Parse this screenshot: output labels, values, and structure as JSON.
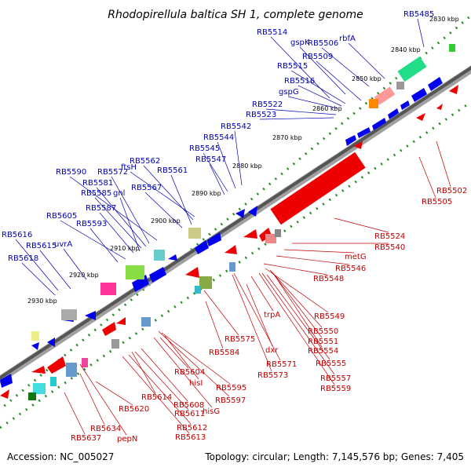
{
  "title": "Rhodopirellula baltica SH 1, complete genome",
  "footer": {
    "accession": "Accession: NC_005027",
    "summary": "Topology: circular; Length: 7,145,576 bp; Genes: 7,405"
  },
  "ticks": [
    "2830 kbp",
    "2840 kbp",
    "2850 kbp",
    "2860 kbp",
    "2870 kbp",
    "2880 kbp",
    "2890 kbp",
    "2900 kbp",
    "2910 kbp",
    "2920 kbp",
    "2930 kbp"
  ],
  "colors": {
    "forward_gene": "#0000ee",
    "reverse_gene": "#ee0000",
    "backbone": "#555555",
    "tick_dot": "#228b22",
    "label_blue": "#0000b0",
    "label_red": "#c00000"
  },
  "labels_blue": [
    "RB5485",
    "RB5514",
    "gspK",
    "RB5506",
    "rbfA",
    "RB5509",
    "RB5515",
    "RB5516",
    "gspG",
    "RB5522",
    "RB5523",
    "RB5542",
    "RB5544",
    "RB5545",
    "RB5547",
    "ftsH",
    "RB5562",
    "RB5561",
    "RB5590",
    "RB5572",
    "RB5581",
    "RB5567",
    "RB5585",
    "gnl",
    "RB5587",
    "RB5605",
    "RB5593",
    "RB5616",
    "uvrA",
    "RB5615",
    "RB5618"
  ],
  "labels_red": [
    "RB5502",
    "RB5505",
    "RB5524",
    "RB5540",
    "metG",
    "RB5546",
    "RB5548",
    "trpA",
    "RB5549",
    "RB5550",
    "RB5551",
    "RB5554",
    "RB5575",
    "dxr",
    "RB5555",
    "RB5584",
    "RB5571",
    "RB5573",
    "RB5557",
    "RB5559",
    "RB5604",
    "hisI",
    "RB5595",
    "RB5597",
    "RB5614",
    "hisG",
    "RB5608",
    "RB5611",
    "RB5620",
    "RB5612",
    "RB5613",
    "RB5634",
    "pepN",
    "RB5637"
  ]
}
